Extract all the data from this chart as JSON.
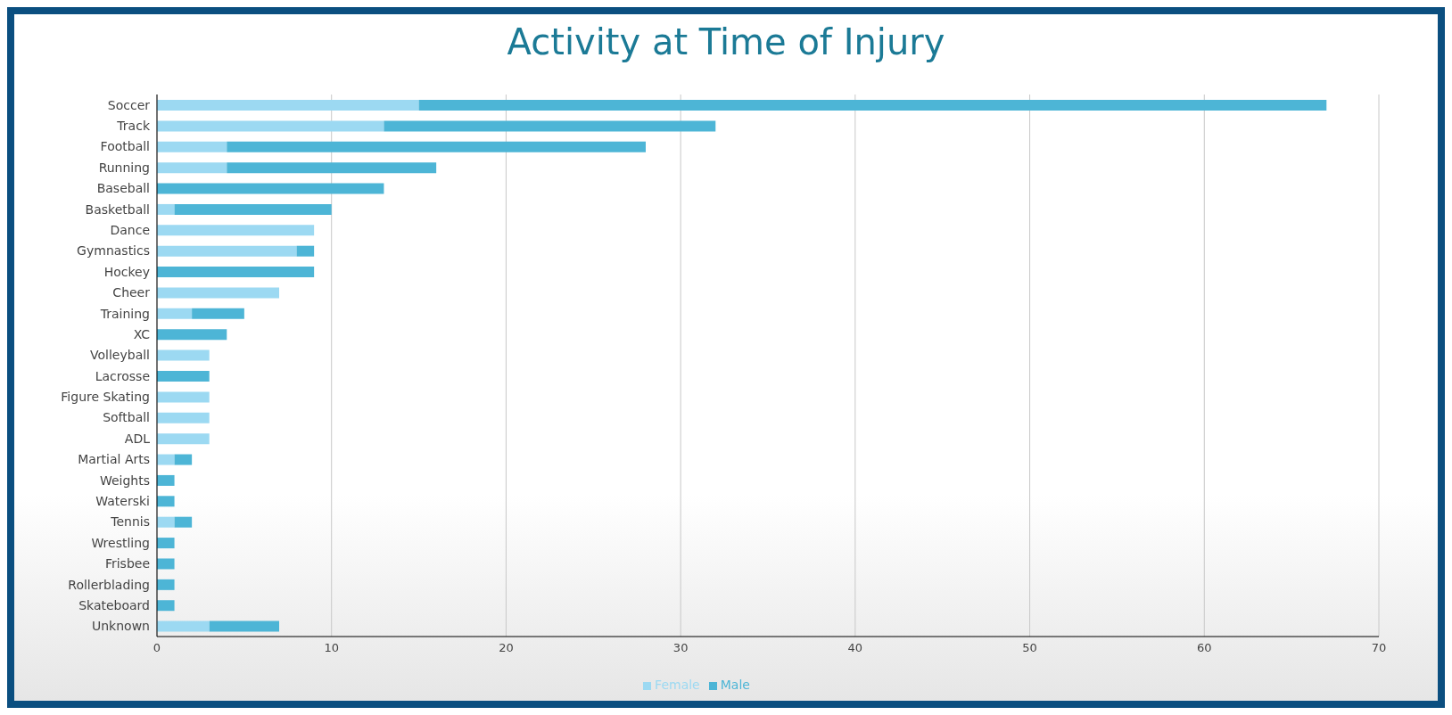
{
  "chart_data": {
    "type": "bar",
    "orientation": "horizontal",
    "stacked": true,
    "title": "Activity at Time of Injury",
    "categories": [
      "Soccer",
      "Track",
      "Football",
      "Running",
      "Baseball",
      "Basketball",
      "Dance",
      "Gymnastics",
      "Hockey",
      "Cheer",
      "Training",
      "XC",
      "Volleyball",
      "Lacrosse",
      "Figure Skating",
      "Softball",
      "ADL",
      "Martial Arts",
      "Weights",
      "Waterski",
      "Tennis",
      "Wrestling",
      "Frisbee",
      "Rollerblading",
      "Skateboard",
      "Unknown"
    ],
    "series": [
      {
        "name": "Female",
        "color": "#9cd9f2",
        "values": [
          15,
          13,
          4,
          4,
          0,
          1,
          9,
          8,
          0,
          7,
          2,
          0,
          3,
          0,
          3,
          3,
          3,
          1,
          0,
          0,
          1,
          0,
          0,
          0,
          0,
          3
        ]
      },
      {
        "name": "Male",
        "color": "#4db5d6",
        "values": [
          52,
          19,
          24,
          12,
          13,
          9,
          0,
          1,
          9,
          0,
          3,
          4,
          0,
          3,
          0,
          0,
          0,
          1,
          1,
          1,
          1,
          1,
          1,
          1,
          1,
          4
        ]
      }
    ],
    "xlim": [
      0,
      70
    ],
    "xticks": [
      0,
      10,
      20,
      30,
      40,
      50,
      60,
      70
    ],
    "grid": "x",
    "legend": "bottom"
  }
}
